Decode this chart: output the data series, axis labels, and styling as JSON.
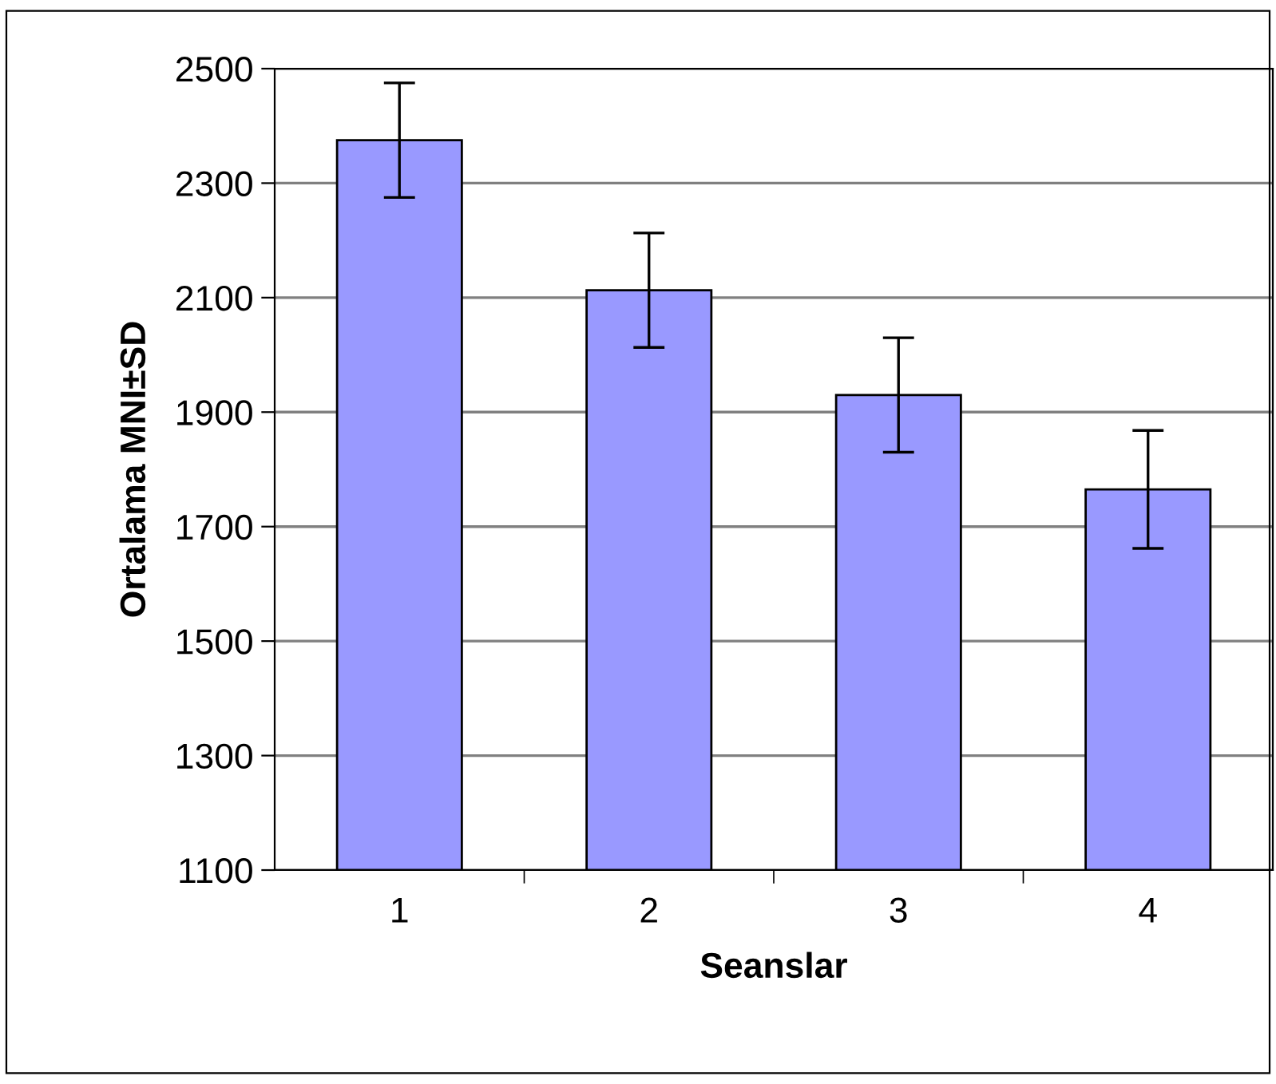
{
  "chart_data": {
    "type": "bar",
    "xlabel": "Seanslar",
    "ylabel": "Ortalama MNI±SD",
    "categories": [
      "1",
      "2",
      "3",
      "4"
    ],
    "values": [
      2375,
      2113,
      1930,
      1765
    ],
    "errors": [
      100,
      100,
      100,
      103
    ],
    "color": "#9999ff",
    "ylim": [
      1100,
      2500
    ],
    "yticks": [
      1100,
      1300,
      1500,
      1700,
      1900,
      2100,
      2300,
      2500
    ],
    "grid": "y",
    "legend": false
  }
}
